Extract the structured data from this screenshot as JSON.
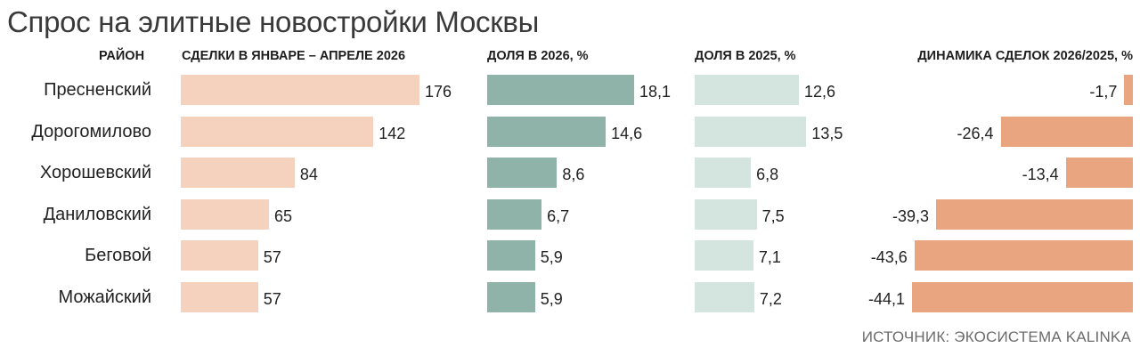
{
  "title": "Спрос на элитные новостройки Москвы",
  "source": "ИСТОЧНИК: ЭКОСИСТЕМА KALINKA",
  "colors": {
    "deals": "#f5d2bd",
    "share2026": "#8fb3a8",
    "share2025": "#d4e5df",
    "dynamics": "#e9a57f"
  },
  "chart_data": {
    "type": "bar",
    "categories": [
      "Пресненский",
      "Дорогомилово",
      "Хорошевский",
      "Даниловский",
      "Беговой",
      "Можайский"
    ],
    "category_header": "РАЙОН",
    "series": [
      {
        "name": "СДЕЛКИ В ЯНВАРЕ – АПРЕЛЕ 2026",
        "values": [
          176,
          142,
          84,
          65,
          57,
          57
        ],
        "labels": [
          "176",
          "142",
          "84",
          "65",
          "57",
          "57"
        ]
      },
      {
        "name": "ДОЛЯ В 2026, %",
        "values": [
          18.1,
          14.6,
          8.6,
          6.7,
          5.9,
          5.9
        ],
        "labels": [
          "18,1",
          "14,6",
          "8,6",
          "6,7",
          "5,9",
          "5,9"
        ]
      },
      {
        "name": "ДОЛЯ В 2025, %",
        "values": [
          12.6,
          13.5,
          6.8,
          7.5,
          7.1,
          7.2
        ],
        "labels": [
          "12,6",
          "13,5",
          "6,8",
          "7,5",
          "7,1",
          "7,2"
        ]
      },
      {
        "name": "ДИНАМИКА СДЕЛОК 2026/2025, %",
        "values": [
          -1.7,
          -26.4,
          -13.4,
          -39.3,
          -43.6,
          -44.1
        ],
        "labels": [
          "-1,7",
          "-26,4",
          "-13,4",
          "-39,3",
          "-43,6",
          "-44,1"
        ]
      }
    ]
  }
}
